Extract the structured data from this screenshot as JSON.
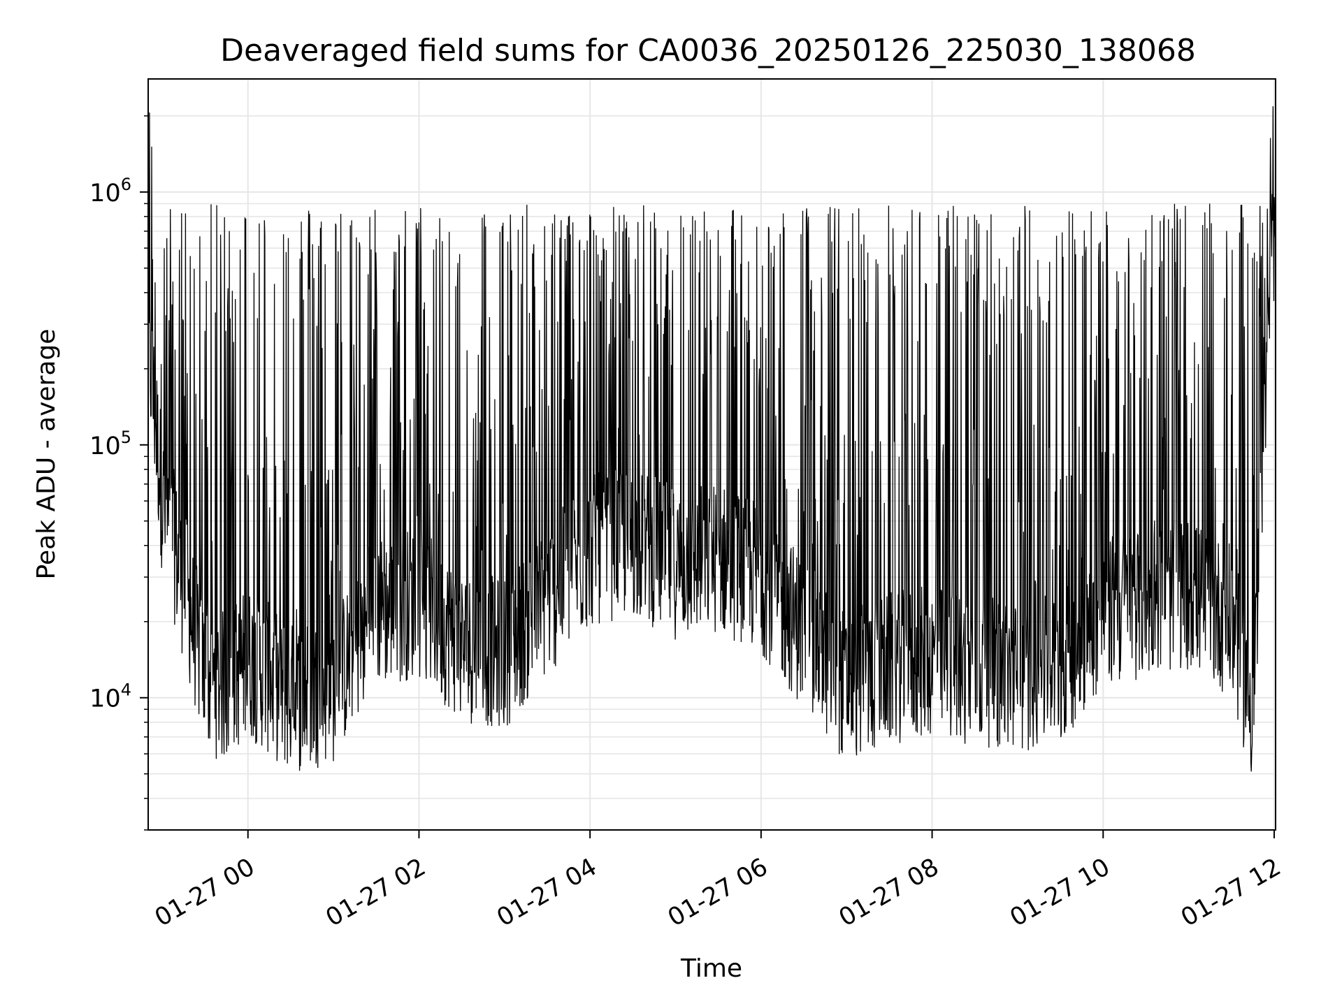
{
  "chart_data": {
    "type": "line",
    "title": "Deaveraged field sums for CA0036_20250126_225030_138068",
    "xlabel": "Time",
    "ylabel": "Peak ADU - average",
    "x_axis": {
      "scale": "time",
      "range": [
        "2025-01-26 22:50",
        "2025-01-27 12:01"
      ],
      "ticks": [
        {
          "value": "2025-01-27 00:00",
          "label": "01-27 00"
        },
        {
          "value": "2025-01-27 02:00",
          "label": "01-27 02"
        },
        {
          "value": "2025-01-27 04:00",
          "label": "01-27 04"
        },
        {
          "value": "2025-01-27 06:00",
          "label": "01-27 06"
        },
        {
          "value": "2025-01-27 08:00",
          "label": "01-27 08"
        },
        {
          "value": "2025-01-27 10:00",
          "label": "01-27 10"
        },
        {
          "value": "2025-01-27 12:00",
          "label": "01-27 12"
        }
      ],
      "tick_label_rotation": 30
    },
    "y_axis": {
      "scale": "log",
      "range": [
        3000,
        2800000
      ],
      "ticks": [
        {
          "value": 10000,
          "base": "10",
          "exp": "4"
        },
        {
          "value": 100000,
          "base": "10",
          "exp": "5"
        },
        {
          "value": 1000000,
          "base": "10",
          "exp": "6"
        }
      ]
    },
    "grid": true,
    "legend": "none",
    "line_color": "#000000",
    "grid_color": "#e6e6e6",
    "series": [
      {
        "values_description_free": true,
        "x_start": "2025-01-26 22:50",
        "x_end": "2025-01-27 12:01",
        "points": [
          [
            "2025-01-26 22:50",
            260000
          ],
          [
            "2025-01-26 23:00",
            60000
          ],
          [
            "2025-01-26 23:15",
            28000
          ],
          [
            "2025-01-26 23:30",
            12000
          ],
          [
            "2025-01-26 23:45",
            11000
          ],
          [
            "2025-01-27 00:00",
            14000
          ],
          [
            "2025-01-27 00:30",
            10000
          ],
          [
            "2025-01-27 01:00",
            11000
          ],
          [
            "2025-01-27 01:30",
            22000
          ],
          [
            "2025-01-27 02:00",
            24000
          ],
          [
            "2025-01-27 02:30",
            16000
          ],
          [
            "2025-01-27 03:00",
            15000
          ],
          [
            "2025-01-27 03:30",
            24000
          ],
          [
            "2025-01-27 04:00",
            38000
          ],
          [
            "2025-01-27 04:30",
            42000
          ],
          [
            "2025-01-27 05:00",
            34000
          ],
          [
            "2025-01-27 05:30",
            36000
          ],
          [
            "2025-01-27 06:00",
            30000
          ],
          [
            "2025-01-27 06:30",
            18000
          ],
          [
            "2025-01-27 07:00",
            11000
          ],
          [
            "2025-01-27 07:30",
            13000
          ],
          [
            "2025-01-27 08:00",
            14000
          ],
          [
            "2025-01-27 08:30",
            13000
          ],
          [
            "2025-01-27 09:00",
            12000
          ],
          [
            "2025-01-27 09:30",
            13000
          ],
          [
            "2025-01-27 10:00",
            22000
          ],
          [
            "2025-01-27 10:30",
            24000
          ],
          [
            "2025-01-27 11:00",
            26000
          ],
          [
            "2025-01-27 11:30",
            20000
          ],
          [
            "2025-01-27 11:45",
            9000
          ],
          [
            "2025-01-27 12:01",
            800000
          ]
        ],
        "spike_peak": 900000
      }
    ]
  }
}
